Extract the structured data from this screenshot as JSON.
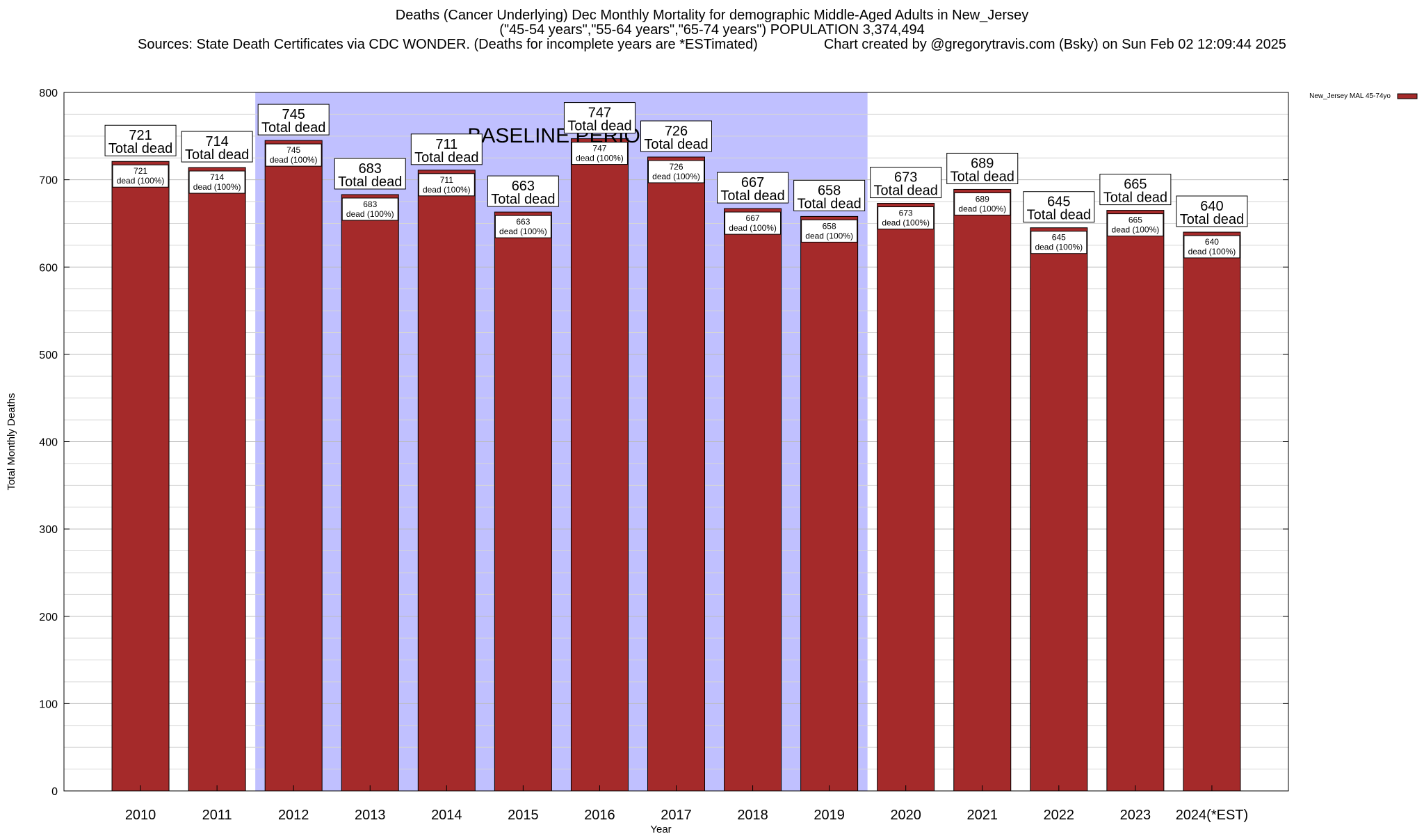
{
  "header": {
    "title": "Deaths (Cancer Underlying) Dec Monthly Mortality for demographic Middle-Aged Adults in New_Jersey",
    "subtitle": "(\"45-54 years\",\"55-64 years\",\"65-74 years\") POPULATION 3,374,494",
    "sources": "Sources: State Death Certificates via CDC WONDER. (Deaths for incomplete years are *ESTimated)",
    "credit": "Chart created by @gregorytravis.com (Bsky) on Sun Feb 02 12:09:44 2025"
  },
  "chart_data": {
    "type": "bar",
    "xlabel": "Year",
    "ylabel": "Total Monthly Deaths",
    "ylim": [
      0,
      800
    ],
    "yticks": [
      0,
      100,
      200,
      300,
      400,
      500,
      600,
      700,
      800
    ],
    "grid": true,
    "categories": [
      "2010",
      "2011",
      "2012",
      "2013",
      "2014",
      "2015",
      "2016",
      "2017",
      "2018",
      "2019",
      "2020",
      "2021",
      "2022",
      "2023",
      "2024(*EST)"
    ],
    "series": [
      {
        "name": "New_Jersey MAL 45-74yo",
        "values": [
          721,
          714,
          745,
          683,
          711,
          663,
          747,
          726,
          667,
          658,
          673,
          689,
          645,
          665,
          640
        ],
        "color": "#a52a2a"
      }
    ],
    "total_label": "Total dead",
    "inner_label": "dead (100%)",
    "baseline_period": {
      "label": "BASELINE PERIOD",
      "start": "2012",
      "end": "2019",
      "color": "#c0c0ff"
    },
    "legend_placement": "top-right"
  }
}
